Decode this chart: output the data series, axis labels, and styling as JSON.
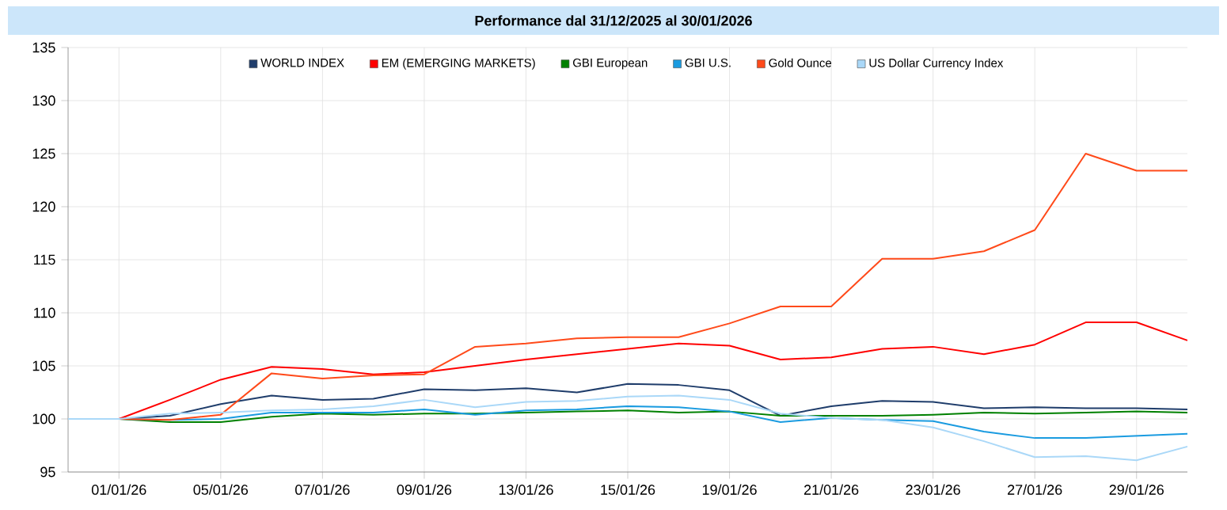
{
  "chart_data": {
    "type": "line",
    "title": "Performance dal 31/12/2025 al 30/01/2026",
    "categories": [
      null,
      "01/01/26",
      null,
      "05/01/26",
      null,
      "07/01/26",
      null,
      "09/01/26",
      null,
      "13/01/26",
      null,
      "15/01/26",
      null,
      "19/01/26",
      null,
      "21/01/26",
      null,
      "23/01/26",
      null,
      "27/01/26",
      null,
      "29/01/26",
      null
    ],
    "series": [
      {
        "name": "WORLD INDEX",
        "color": "#1f3d6b",
        "values": [
          100,
          100,
          100.3,
          101.4,
          102.2,
          101.8,
          101.9,
          102.8,
          102.7,
          102.9,
          102.5,
          103.3,
          103.2,
          102.7,
          100.3,
          101.2,
          101.7,
          101.6,
          101.0,
          101.1,
          101.0,
          101.0,
          100.9
        ]
      },
      {
        "name": "EM (EMERGING MARKETS)",
        "color": "#ff0000",
        "values": [
          100,
          100,
          101.8,
          103.7,
          104.9,
          104.7,
          104.2,
          104.4,
          105.0,
          105.6,
          106.1,
          106.6,
          107.1,
          106.9,
          105.6,
          105.8,
          106.6,
          106.8,
          106.1,
          107.0,
          109.1,
          109.1,
          107.4
        ]
      },
      {
        "name": "GBI European",
        "color": "#008000",
        "values": [
          100,
          100,
          99.7,
          99.7,
          100.2,
          100.5,
          100.4,
          100.5,
          100.5,
          100.6,
          100.7,
          100.8,
          100.6,
          100.7,
          100.3,
          100.3,
          100.3,
          100.4,
          100.6,
          100.5,
          100.6,
          100.7,
          100.6
        ]
      },
      {
        "name": "GBI U.S.",
        "color": "#1a9be0",
        "values": [
          100,
          100,
          99.9,
          100.0,
          100.6,
          100.6,
          100.6,
          100.9,
          100.4,
          100.8,
          100.9,
          101.2,
          101.1,
          100.7,
          99.7,
          100.1,
          99.9,
          99.8,
          98.8,
          98.2,
          98.2,
          98.4,
          98.6
        ]
      },
      {
        "name": "Gold Ounce",
        "color": "#ff4a1a",
        "values": [
          100,
          100,
          99.9,
          100.4,
          104.3,
          103.8,
          104.1,
          104.2,
          106.8,
          107.1,
          107.6,
          107.7,
          107.7,
          109.0,
          110.6,
          110.6,
          115.1,
          115.1,
          115.8,
          117.8,
          125.0,
          123.4,
          123.4
        ]
      },
      {
        "name": "US Dollar Currency Index",
        "color": "#aad8f8",
        "values": [
          100,
          100,
          100.5,
          100.6,
          100.8,
          100.9,
          101.2,
          101.8,
          101.1,
          101.6,
          101.7,
          102.1,
          102.2,
          101.8,
          100.5,
          100.1,
          99.9,
          99.2,
          97.9,
          96.4,
          96.5,
          96.1,
          97.4
        ]
      }
    ],
    "ylim": [
      95,
      135
    ],
    "yticks": [
      95,
      100,
      105,
      110,
      115,
      120,
      125,
      130,
      135
    ],
    "grid": true,
    "legend": "top",
    "marker": "none",
    "line_style": "solid"
  }
}
